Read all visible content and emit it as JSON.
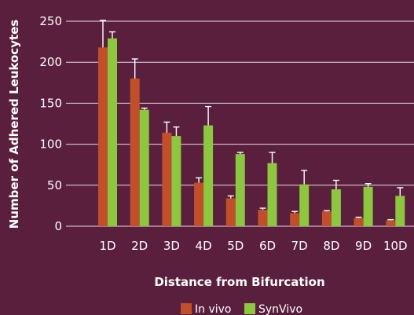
{
  "chart_data": {
    "type": "bar",
    "categories": [
      "1D",
      "2D",
      "3D",
      "4D",
      "5D",
      "6D",
      "7D",
      "8D",
      "9D",
      "10D"
    ],
    "series": [
      {
        "name": "In vivo",
        "color": "#c1502a",
        "values": [
          218,
          180,
          114,
          53,
          34,
          20,
          16,
          18,
          10,
          7
        ],
        "errors": [
          33,
          24,
          13,
          6,
          3,
          2,
          2,
          1,
          1,
          1
        ]
      },
      {
        "name": "SynVivo",
        "color": "#8dc63f",
        "values": [
          229,
          142,
          110,
          123,
          88,
          77,
          51,
          45,
          48,
          37
        ],
        "errors": [
          8,
          2,
          11,
          23,
          2,
          13,
          17,
          11,
          4,
          10
        ]
      }
    ],
    "xlabel": "Distance from Bifurcation",
    "ylabel": "Number of Adhered Leukocytes",
    "ylim": [
      0,
      250
    ],
    "yticks": [
      0,
      50,
      100,
      150,
      200,
      250
    ],
    "grid": true,
    "legend_position": "bottom"
  }
}
